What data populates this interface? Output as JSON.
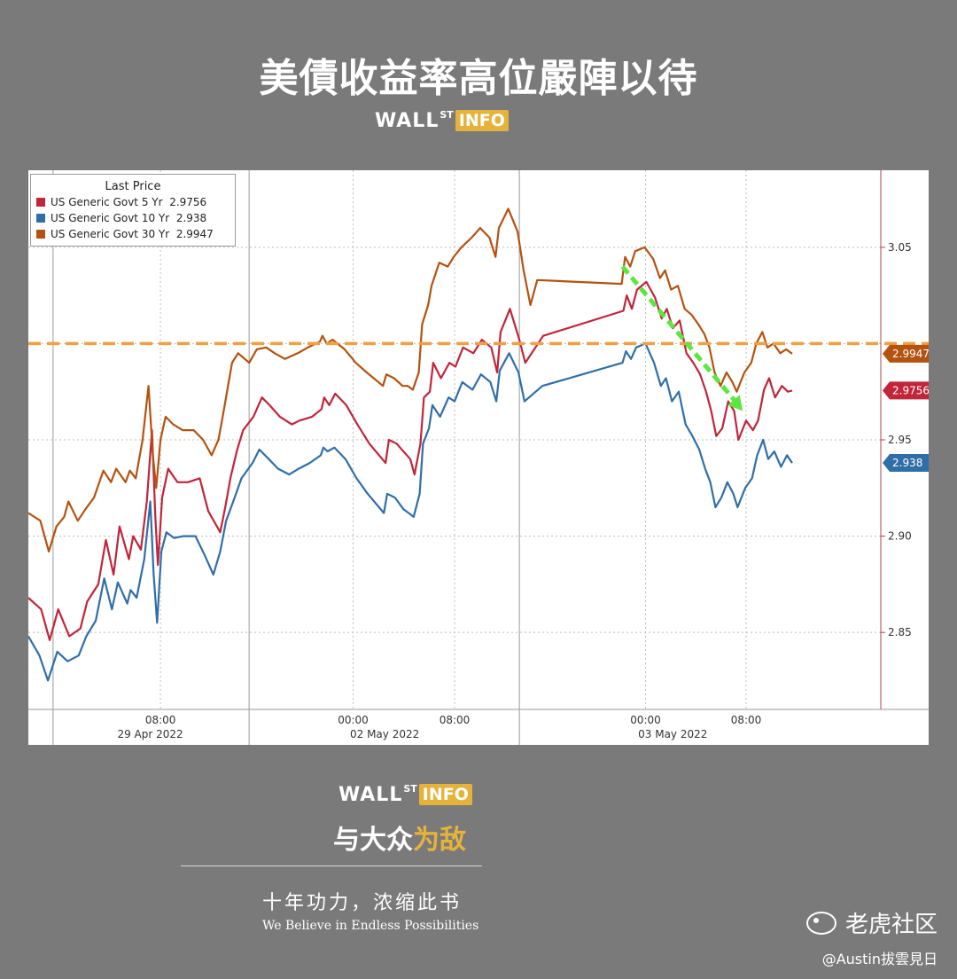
{
  "header": {
    "title": "美債收益率高位嚴陣以待",
    "brand_wall": "WALL",
    "brand_st": "ST",
    "brand_info": "INFO"
  },
  "footer": {
    "brand_wall": "WALL",
    "brand_st": "ST",
    "brand_info": "INFO",
    "slogan_a": "与大众",
    "slogan_b": "为敌",
    "motto": "十年功力，浓缩此书",
    "motto_en": "We Believe in Endless Possibilities",
    "watermark": "老虎社区",
    "author": "@Austin拔雲見日"
  },
  "colors": {
    "five_yr": "#c0253a",
    "ten_yr": "#2f6fa8",
    "thirty_yr": "#b4520f",
    "reference_line": "#f0a040",
    "trend_arrow": "#5ce640",
    "page_bg": "#7a7a7a",
    "brand_accent": "#e6b33a"
  },
  "chart_data": {
    "type": "line",
    "legend_title": "Last Price",
    "legend_position": "top-left",
    "grid": true,
    "y_axis_side": "right",
    "ylim": [
      2.81,
      3.09
    ],
    "yticks": [
      "3.05",
      "2.95",
      "2.90",
      "2.85"
    ],
    "hidden_tick_behind_line": "3.00",
    "xlim": [
      0,
      100
    ],
    "x_tick_labels": [
      {
        "x": 15.5,
        "label": "08:00"
      },
      {
        "x": 38.1,
        "label": "00:00"
      },
      {
        "x": 50.0,
        "label": "08:00"
      },
      {
        "x": 72.4,
        "label": "00:00"
      },
      {
        "x": 84.2,
        "label": "08:00"
      }
    ],
    "date_labels": [
      {
        "x": 14.3,
        "label": "29 Apr 2022"
      },
      {
        "x": 41.8,
        "label": "02 May 2022"
      },
      {
        "x": 75.6,
        "label": "03 May 2022"
      }
    ],
    "date_separators": [
      2.9,
      25.9,
      57.6
    ],
    "reference_line": {
      "value": 3.0,
      "style": "dashed"
    },
    "trend_arrow": {
      "from": [
        69.7,
        3.04
      ],
      "to": [
        83.8,
        2.965
      ]
    },
    "series": [
      {
        "name": "US Generic Govt 5 Yr",
        "last": "2.9756",
        "color_key": "five_yr",
        "points": [
          [
            0,
            2.868
          ],
          [
            1.5,
            2.862
          ],
          [
            2.5,
            2.846
          ],
          [
            3.5,
            2.862
          ],
          [
            4.8,
            2.848
          ],
          [
            6.1,
            2.852
          ],
          [
            6.9,
            2.866
          ],
          [
            8.2,
            2.875
          ],
          [
            9.1,
            2.898
          ],
          [
            10.0,
            2.88
          ],
          [
            10.7,
            2.905
          ],
          [
            11.8,
            2.888
          ],
          [
            12.3,
            2.9
          ],
          [
            13.2,
            2.893
          ],
          [
            13.9,
            2.918
          ],
          [
            14.5,
            2.955
          ],
          [
            14.9,
            2.91
          ],
          [
            15.2,
            2.885
          ],
          [
            15.7,
            2.92
          ],
          [
            16.4,
            2.935
          ],
          [
            17.5,
            2.928
          ],
          [
            18.7,
            2.928
          ],
          [
            20.1,
            2.93
          ],
          [
            21.1,
            2.913
          ],
          [
            22.5,
            2.902
          ],
          [
            23.1,
            2.915
          ],
          [
            23.7,
            2.93
          ],
          [
            24.5,
            2.945
          ],
          [
            25.2,
            2.955
          ],
          [
            26.4,
            2.962
          ],
          [
            27.4,
            2.972
          ],
          [
            28.3,
            2.968
          ],
          [
            29.5,
            2.962
          ],
          [
            30.9,
            2.958
          ],
          [
            31.8,
            2.96
          ],
          [
            33.3,
            2.962
          ],
          [
            34.4,
            2.966
          ],
          [
            34.7,
            2.972
          ],
          [
            35.3,
            2.968
          ],
          [
            36.0,
            2.974
          ],
          [
            37.3,
            2.968
          ],
          [
            38.6,
            2.958
          ],
          [
            40.0,
            2.948
          ],
          [
            41.9,
            2.938
          ],
          [
            42.3,
            2.95
          ],
          [
            43.2,
            2.948
          ],
          [
            44.2,
            2.943
          ],
          [
            44.8,
            2.94
          ],
          [
            45.3,
            2.932
          ],
          [
            46.0,
            2.948
          ],
          [
            46.4,
            2.972
          ],
          [
            47.1,
            2.975
          ],
          [
            47.5,
            2.99
          ],
          [
            48.4,
            2.982
          ],
          [
            49.4,
            2.99
          ],
          [
            50.1,
            2.988
          ],
          [
            51.0,
            2.998
          ],
          [
            52.2,
            2.995
          ],
          [
            53.2,
            3.002
          ],
          [
            54.3,
            2.998
          ],
          [
            55.0,
            2.985
          ],
          [
            55.4,
            3.006
          ],
          [
            56.5,
            3.018
          ],
          [
            57.6,
            3.002
          ],
          [
            58.3,
            2.99
          ],
          [
            60.4,
            3.004
          ],
          [
            69.8,
            3.017
          ],
          [
            70.2,
            3.025
          ],
          [
            70.8,
            3.018
          ],
          [
            71.4,
            3.028
          ],
          [
            72.5,
            3.032
          ],
          [
            73.5,
            3.024
          ],
          [
            74.3,
            3.013
          ],
          [
            74.9,
            3.018
          ],
          [
            75.6,
            3.008
          ],
          [
            76.4,
            3.012
          ],
          [
            77.2,
            2.995
          ],
          [
            78.0,
            2.99
          ],
          [
            78.8,
            2.984
          ],
          [
            79.5,
            2.975
          ],
          [
            80.1,
            2.965
          ],
          [
            80.7,
            2.952
          ],
          [
            81.4,
            2.956
          ],
          [
            82.1,
            2.97
          ],
          [
            82.8,
            2.965
          ],
          [
            83.3,
            2.95
          ],
          [
            84.2,
            2.96
          ],
          [
            85.0,
            2.955
          ],
          [
            85.6,
            2.96
          ],
          [
            86.3,
            2.976
          ],
          [
            86.9,
            2.982
          ],
          [
            87.6,
            2.972
          ],
          [
            88.4,
            2.978
          ],
          [
            89.1,
            2.975
          ],
          [
            89.6,
            2.9756
          ]
        ]
      },
      {
        "name": "US Generic Govt 10 Yr",
        "last": "2.938",
        "color_key": "ten_yr",
        "points": [
          [
            0,
            2.848
          ],
          [
            1.3,
            2.838
          ],
          [
            2.3,
            2.825
          ],
          [
            3.4,
            2.84
          ],
          [
            4.6,
            2.835
          ],
          [
            5.9,
            2.838
          ],
          [
            6.8,
            2.848
          ],
          [
            7.9,
            2.856
          ],
          [
            8.9,
            2.878
          ],
          [
            9.8,
            2.862
          ],
          [
            10.5,
            2.876
          ],
          [
            11.6,
            2.865
          ],
          [
            12.0,
            2.872
          ],
          [
            12.7,
            2.868
          ],
          [
            13.6,
            2.888
          ],
          [
            14.3,
            2.918
          ],
          [
            14.7,
            2.88
          ],
          [
            15.1,
            2.855
          ],
          [
            15.6,
            2.892
          ],
          [
            16.2,
            2.902
          ],
          [
            17.1,
            2.899
          ],
          [
            18.2,
            2.9
          ],
          [
            19.6,
            2.9
          ],
          [
            20.7,
            2.89
          ],
          [
            21.7,
            2.88
          ],
          [
            22.5,
            2.892
          ],
          [
            23.2,
            2.908
          ],
          [
            24.2,
            2.92
          ],
          [
            25.0,
            2.93
          ],
          [
            26.3,
            2.938
          ],
          [
            27.1,
            2.945
          ],
          [
            28.2,
            2.94
          ],
          [
            29.3,
            2.935
          ],
          [
            30.6,
            2.932
          ],
          [
            31.7,
            2.935
          ],
          [
            33.0,
            2.938
          ],
          [
            34.3,
            2.942
          ],
          [
            34.6,
            2.946
          ],
          [
            35.1,
            2.944
          ],
          [
            35.9,
            2.946
          ],
          [
            37.2,
            2.94
          ],
          [
            38.5,
            2.93
          ],
          [
            39.8,
            2.922
          ],
          [
            41.7,
            2.912
          ],
          [
            42.1,
            2.922
          ],
          [
            43.0,
            2.92
          ],
          [
            44.0,
            2.914
          ],
          [
            44.6,
            2.912
          ],
          [
            45.2,
            2.91
          ],
          [
            45.9,
            2.922
          ],
          [
            46.3,
            2.948
          ],
          [
            47.0,
            2.956
          ],
          [
            47.4,
            2.968
          ],
          [
            48.3,
            2.962
          ],
          [
            49.3,
            2.972
          ],
          [
            50.0,
            2.97
          ],
          [
            50.9,
            2.98
          ],
          [
            52.1,
            2.976
          ],
          [
            53.1,
            2.984
          ],
          [
            54.2,
            2.98
          ],
          [
            54.9,
            2.97
          ],
          [
            55.3,
            2.986
          ],
          [
            56.4,
            2.995
          ],
          [
            57.5,
            2.985
          ],
          [
            58.2,
            2.97
          ],
          [
            60.3,
            2.978
          ],
          [
            69.7,
            2.99
          ],
          [
            70.1,
            2.996
          ],
          [
            70.7,
            2.992
          ],
          [
            71.3,
            2.998
          ],
          [
            72.4,
            3.0
          ],
          [
            73.4,
            2.99
          ],
          [
            74.2,
            2.978
          ],
          [
            74.8,
            2.982
          ],
          [
            75.5,
            2.97
          ],
          [
            76.3,
            2.975
          ],
          [
            77.1,
            2.958
          ],
          [
            77.9,
            2.952
          ],
          [
            78.7,
            2.945
          ],
          [
            79.4,
            2.935
          ],
          [
            80.0,
            2.928
          ],
          [
            80.6,
            2.915
          ],
          [
            81.3,
            2.92
          ],
          [
            82.0,
            2.928
          ],
          [
            82.7,
            2.922
          ],
          [
            83.2,
            2.915
          ],
          [
            84.1,
            2.925
          ],
          [
            84.9,
            2.93
          ],
          [
            85.5,
            2.942
          ],
          [
            86.2,
            2.95
          ],
          [
            86.8,
            2.94
          ],
          [
            87.5,
            2.944
          ],
          [
            88.3,
            2.936
          ],
          [
            89.0,
            2.942
          ],
          [
            89.6,
            2.938
          ]
        ]
      },
      {
        "name": "US Generic Govt 30 Yr",
        "last": "2.9947",
        "color_key": "thirty_yr",
        "points": [
          [
            0,
            2.912
          ],
          [
            1.4,
            2.908
          ],
          [
            2.4,
            2.892
          ],
          [
            3.3,
            2.905
          ],
          [
            4.2,
            2.91
          ],
          [
            4.7,
            2.918
          ],
          [
            5.8,
            2.908
          ],
          [
            6.7,
            2.914
          ],
          [
            7.7,
            2.92
          ],
          [
            8.8,
            2.934
          ],
          [
            9.7,
            2.928
          ],
          [
            10.3,
            2.935
          ],
          [
            11.4,
            2.928
          ],
          [
            11.9,
            2.934
          ],
          [
            12.6,
            2.93
          ],
          [
            13.4,
            2.95
          ],
          [
            14.1,
            2.978
          ],
          [
            14.6,
            2.942
          ],
          [
            15.0,
            2.925
          ],
          [
            15.5,
            2.95
          ],
          [
            16.1,
            2.962
          ],
          [
            17.0,
            2.958
          ],
          [
            18.1,
            2.955
          ],
          [
            19.4,
            2.955
          ],
          [
            20.5,
            2.95
          ],
          [
            21.5,
            2.942
          ],
          [
            22.3,
            2.95
          ],
          [
            22.8,
            2.962
          ],
          [
            23.9,
            2.99
          ],
          [
            24.6,
            2.995
          ],
          [
            25.9,
            2.99
          ],
          [
            26.8,
            2.997
          ],
          [
            27.9,
            2.998
          ],
          [
            28.9,
            2.995
          ],
          [
            30.1,
            2.992
          ],
          [
            31.6,
            2.995
          ],
          [
            32.8,
            2.998
          ],
          [
            34.2,
            3.001
          ],
          [
            34.5,
            3.004
          ],
          [
            35.0,
            3.0
          ],
          [
            35.7,
            3.002
          ],
          [
            37.1,
            2.997
          ],
          [
            38.4,
            2.99
          ],
          [
            39.7,
            2.985
          ],
          [
            41.6,
            2.978
          ],
          [
            42.0,
            2.984
          ],
          [
            42.9,
            2.982
          ],
          [
            43.9,
            2.978
          ],
          [
            44.5,
            2.978
          ],
          [
            45.1,
            2.976
          ],
          [
            45.8,
            2.985
          ],
          [
            46.2,
            3.01
          ],
          [
            46.9,
            3.02
          ],
          [
            47.3,
            3.03
          ],
          [
            48.2,
            3.042
          ],
          [
            49.2,
            3.04
          ],
          [
            49.9,
            3.045
          ],
          [
            50.8,
            3.05
          ],
          [
            52.0,
            3.055
          ],
          [
            53.0,
            3.06
          ],
          [
            54.1,
            3.055
          ],
          [
            54.8,
            3.045
          ],
          [
            55.2,
            3.06
          ],
          [
            56.3,
            3.07
          ],
          [
            57.4,
            3.058
          ],
          [
            58.1,
            3.038
          ],
          [
            58.9,
            3.02
          ],
          [
            59.7,
            3.033
          ],
          [
            69.6,
            3.031
          ],
          [
            70.0,
            3.045
          ],
          [
            70.6,
            3.04
          ],
          [
            71.2,
            3.048
          ],
          [
            72.3,
            3.05
          ],
          [
            73.3,
            3.044
          ],
          [
            74.1,
            3.034
          ],
          [
            74.7,
            3.038
          ],
          [
            75.4,
            3.028
          ],
          [
            76.2,
            3.03
          ],
          [
            77.0,
            3.018
          ],
          [
            77.8,
            3.015
          ],
          [
            78.6,
            3.01
          ],
          [
            79.3,
            3.005
          ],
          [
            79.9,
            2.998
          ],
          [
            80.5,
            2.985
          ],
          [
            81.2,
            2.978
          ],
          [
            81.9,
            2.985
          ],
          [
            82.6,
            2.98
          ],
          [
            83.1,
            2.975
          ],
          [
            84.0,
            2.985
          ],
          [
            84.8,
            2.99
          ],
          [
            85.4,
            3.0
          ],
          [
            86.1,
            3.006
          ],
          [
            86.7,
            2.998
          ],
          [
            87.4,
            3.0
          ],
          [
            88.2,
            2.995
          ],
          [
            88.9,
            2.997
          ],
          [
            89.6,
            2.9947
          ]
        ]
      }
    ]
  }
}
